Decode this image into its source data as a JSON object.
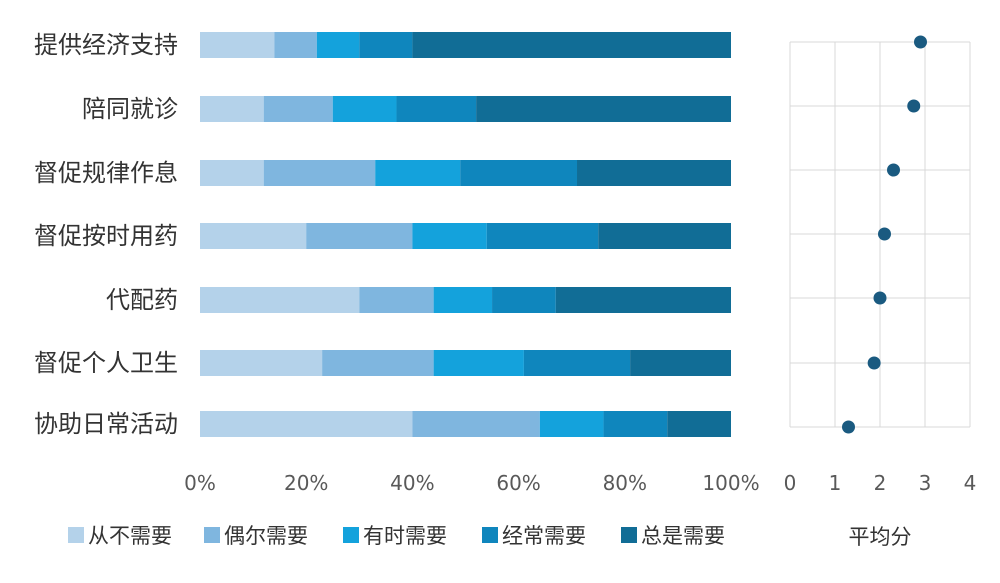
{
  "chart_data": [
    {
      "type": "bar",
      "orientation": "horizontal",
      "stacked": "100%",
      "categories": [
        "提供经济支持",
        "陪同就诊",
        "督促规律作息",
        "督促按时用药",
        "代配药",
        "督促个人卫生",
        "协助日常活动"
      ],
      "series": [
        {
          "name": "从不需要",
          "color": "#b4d2ea",
          "values": [
            14,
            12,
            12,
            20,
            30,
            23,
            40
          ]
        },
        {
          "name": "偶尔需要",
          "color": "#7fb6df",
          "values": [
            8,
            13,
            21,
            20,
            14,
            21,
            24
          ]
        },
        {
          "name": "有时需要",
          "color": "#14a2dc",
          "values": [
            8,
            12,
            16,
            14,
            11,
            17,
            12
          ]
        },
        {
          "name": "经常需要",
          "color": "#0f86bd",
          "values": [
            10,
            15,
            22,
            21,
            12,
            20,
            12
          ]
        },
        {
          "name": "总是需要",
          "color": "#116d96",
          "values": [
            60,
            48,
            29,
            25,
            33,
            19,
            12
          ]
        }
      ],
      "xticks": [
        "0%",
        "20%",
        "40%",
        "60%",
        "80%",
        "100%"
      ],
      "xlim": [
        0,
        100
      ],
      "grid": false,
      "legend_position": "bottom"
    },
    {
      "type": "scatter",
      "xlabel": "平均分",
      "xlim": [
        0,
        4
      ],
      "xticks": [
        "0",
        "1",
        "2",
        "3",
        "4"
      ],
      "grid": true,
      "marker_color": "#1a5a80",
      "points": [
        {
          "category": "提供经济支持",
          "value": 2.9
        },
        {
          "category": "陪同就诊",
          "value": 2.75
        },
        {
          "category": "督促规律作息",
          "value": 2.3
        },
        {
          "category": "督促按时用药",
          "value": 2.1
        },
        {
          "category": "代配药",
          "value": 2.0
        },
        {
          "category": "督促个人卫生",
          "value": 1.87
        },
        {
          "category": "协助日常活动",
          "value": 1.3
        }
      ]
    }
  ]
}
